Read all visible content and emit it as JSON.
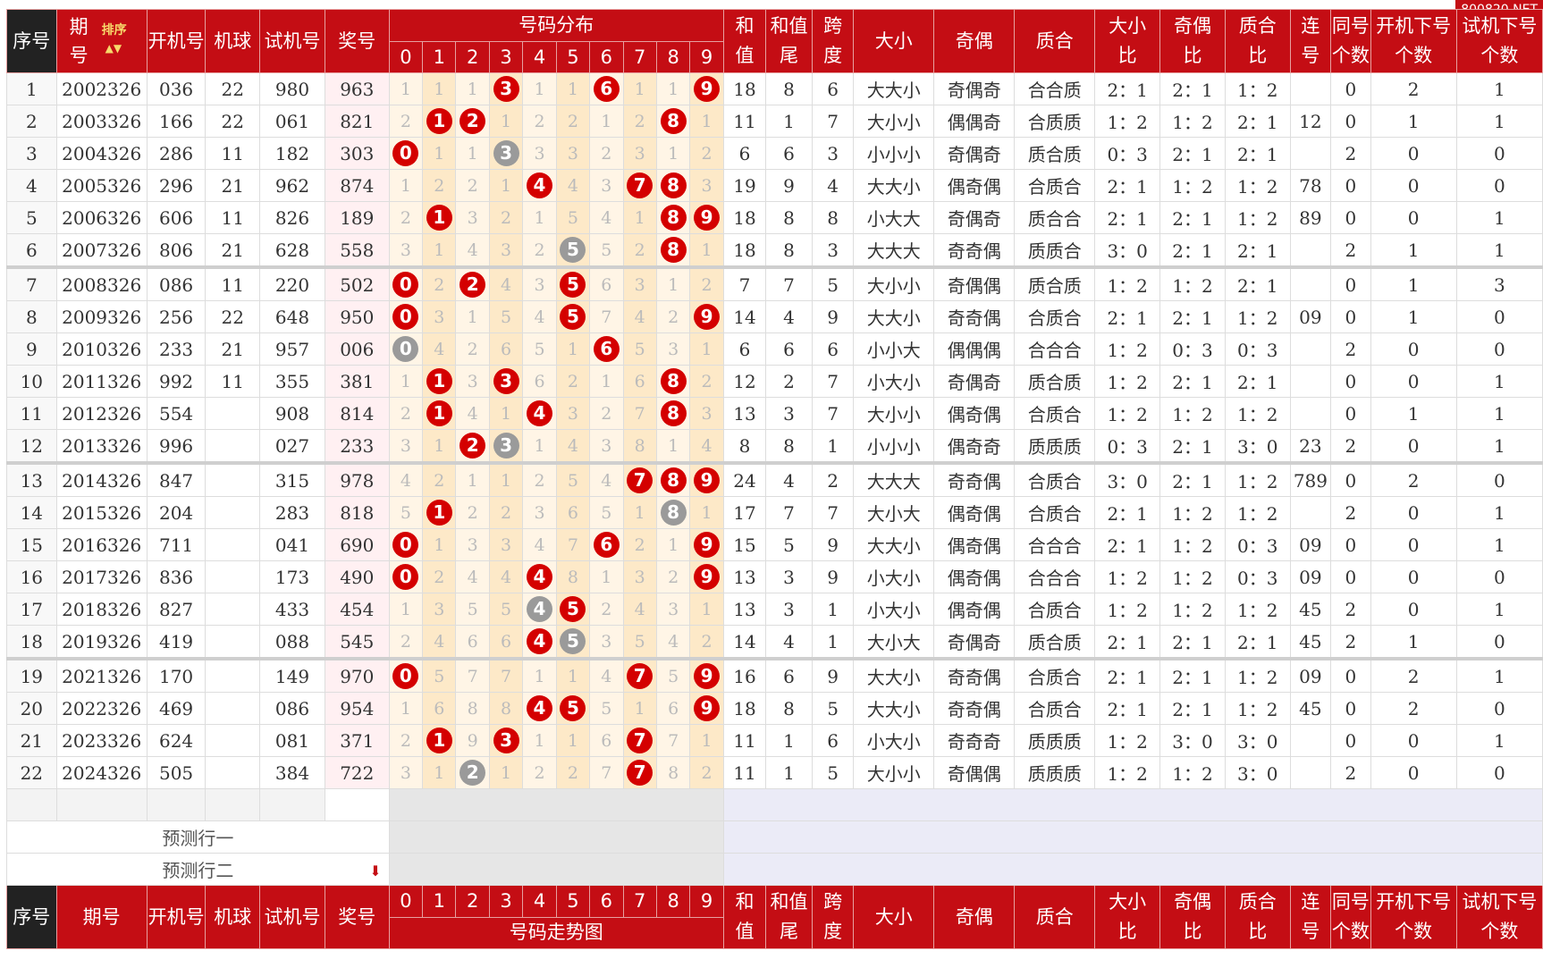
{
  "watermark": "800820.NET",
  "header": {
    "seq": "序号",
    "period_top": "期",
    "period_bottom": "号",
    "period_full": "期号",
    "sort": "排序",
    "open_no": "开机号",
    "ball": "机球",
    "trial_no": "试机号",
    "prize_no": "奖号",
    "dist_title": "号码分布",
    "trend_title": "号码走势图",
    "digits": [
      "0",
      "1",
      "2",
      "3",
      "4",
      "5",
      "6",
      "7",
      "8",
      "9"
    ],
    "sum_top": "和",
    "sum_bottom": "值",
    "sumtail_top": "和值",
    "sumtail_bottom": "尾",
    "span_top": "跨",
    "span_bottom": "度",
    "big_small": "大小",
    "odd_even": "奇偶",
    "prime": "质合",
    "bs_ratio_top": "大小",
    "bs_ratio_bottom": "比",
    "oe_ratio_top": "奇偶",
    "oe_ratio_bottom": "比",
    "pr_ratio_top": "质合",
    "pr_ratio_bottom": "比",
    "consec_top": "连",
    "consec_bottom": "号",
    "same_top": "同号",
    "same_bottom": "个数",
    "opennext_top": "开机下号",
    "opennext_bottom": "个数",
    "trialnext_top": "试机下号",
    "trialnext_bottom": "个数"
  },
  "predict": [
    "预测行一",
    "预测行二"
  ],
  "rows": [
    {
      "seq": "1",
      "period": "2002326",
      "open": "036",
      "ball": "22",
      "trial": "980",
      "prize": "963",
      "dist": [
        "1",
        "1",
        "1",
        "3",
        "1",
        "1",
        "6",
        "1",
        "1",
        "9"
      ],
      "hits": [
        3,
        6,
        9
      ],
      "gray": [],
      "sum": "18",
      "tail": "8",
      "span": "6",
      "bs": "大大小",
      "oe": "奇偶奇",
      "pr": "合合质",
      "bsr": "2：1",
      "oer": "2：1",
      "prr": "1：2",
      "consec": "",
      "same": "0",
      "opennext": "2",
      "trialnext": "1"
    },
    {
      "seq": "2",
      "period": "2003326",
      "open": "166",
      "ball": "22",
      "trial": "061",
      "prize": "821",
      "dist": [
        "2",
        "1",
        "2",
        "1",
        "2",
        "2",
        "1",
        "2",
        "8",
        "1"
      ],
      "hits": [
        1,
        2,
        8
      ],
      "gray": [],
      "sum": "11",
      "tail": "1",
      "span": "7",
      "bs": "大小小",
      "oe": "偶偶奇",
      "pr": "合质质",
      "bsr": "1：2",
      "oer": "1：2",
      "prr": "2：1",
      "consec": "12",
      "same": "0",
      "opennext": "1",
      "trialnext": "1"
    },
    {
      "seq": "3",
      "period": "2004326",
      "open": "286",
      "ball": "11",
      "trial": "182",
      "prize": "303",
      "dist": [
        "0",
        "1",
        "1",
        "3",
        "3",
        "3",
        "2",
        "3",
        "1",
        "2"
      ],
      "hits": [
        0
      ],
      "gray": [
        3
      ],
      "sum": "6",
      "tail": "6",
      "span": "3",
      "bs": "小小小",
      "oe": "奇偶奇",
      "pr": "质合质",
      "bsr": "0：3",
      "oer": "2：1",
      "prr": "2：1",
      "consec": "",
      "same": "2",
      "opennext": "0",
      "trialnext": "0"
    },
    {
      "seq": "4",
      "period": "2005326",
      "open": "296",
      "ball": "21",
      "trial": "962",
      "prize": "874",
      "dist": [
        "1",
        "2",
        "2",
        "1",
        "4",
        "4",
        "3",
        "7",
        "8",
        "3"
      ],
      "hits": [
        4,
        7,
        8
      ],
      "gray": [],
      "sum": "19",
      "tail": "9",
      "span": "4",
      "bs": "大大小",
      "oe": "偶奇偶",
      "pr": "合质合",
      "bsr": "2：1",
      "oer": "1：2",
      "prr": "1：2",
      "consec": "78",
      "same": "0",
      "opennext": "0",
      "trialnext": "0"
    },
    {
      "seq": "5",
      "period": "2006326",
      "open": "606",
      "ball": "11",
      "trial": "826",
      "prize": "189",
      "dist": [
        "2",
        "1",
        "3",
        "2",
        "1",
        "5",
        "4",
        "1",
        "8",
        "9"
      ],
      "hits": [
        1,
        8,
        9
      ],
      "gray": [],
      "sum": "18",
      "tail": "8",
      "span": "8",
      "bs": "小大大",
      "oe": "奇偶奇",
      "pr": "质合合",
      "bsr": "2：1",
      "oer": "2：1",
      "prr": "1：2",
      "consec": "89",
      "same": "0",
      "opennext": "0",
      "trialnext": "1"
    },
    {
      "seq": "6",
      "period": "2007326",
      "open": "806",
      "ball": "21",
      "trial": "628",
      "prize": "558",
      "dist": [
        "3",
        "1",
        "4",
        "3",
        "2",
        "5",
        "5",
        "2",
        "8",
        "1"
      ],
      "hits": [
        8
      ],
      "gray": [
        5
      ],
      "sum": "18",
      "tail": "8",
      "span": "3",
      "bs": "大大大",
      "oe": "奇奇偶",
      "pr": "质质合",
      "bsr": "3：0",
      "oer": "2：1",
      "prr": "2：1",
      "consec": "",
      "same": "2",
      "opennext": "1",
      "trialnext": "1"
    },
    {
      "seq": "7",
      "period": "2008326",
      "open": "086",
      "ball": "11",
      "trial": "220",
      "prize": "502",
      "dist": [
        "0",
        "2",
        "2",
        "4",
        "3",
        "5",
        "6",
        "3",
        "1",
        "2"
      ],
      "hits": [
        0,
        2,
        5
      ],
      "gray": [],
      "sum": "7",
      "tail": "7",
      "span": "5",
      "bs": "大小小",
      "oe": "奇偶偶",
      "pr": "质合质",
      "bsr": "1：2",
      "oer": "1：2",
      "prr": "2：1",
      "consec": "",
      "same": "0",
      "opennext": "1",
      "trialnext": "3"
    },
    {
      "seq": "8",
      "period": "2009326",
      "open": "256",
      "ball": "22",
      "trial": "648",
      "prize": "950",
      "dist": [
        "0",
        "3",
        "1",
        "5",
        "4",
        "5",
        "7",
        "4",
        "2",
        "9"
      ],
      "hits": [
        0,
        5,
        9
      ],
      "gray": [],
      "sum": "14",
      "tail": "4",
      "span": "9",
      "bs": "大大小",
      "oe": "奇奇偶",
      "pr": "合质合",
      "bsr": "2：1",
      "oer": "2：1",
      "prr": "1：2",
      "consec": "09",
      "same": "0",
      "opennext": "1",
      "trialnext": "0"
    },
    {
      "seq": "9",
      "period": "2010326",
      "open": "233",
      "ball": "21",
      "trial": "957",
      "prize": "006",
      "dist": [
        "0",
        "4",
        "2",
        "6",
        "5",
        "1",
        "6",
        "5",
        "3",
        "1"
      ],
      "hits": [
        6
      ],
      "gray": [
        0
      ],
      "sum": "6",
      "tail": "6",
      "span": "6",
      "bs": "小小大",
      "oe": "偶偶偶",
      "pr": "合合合",
      "bsr": "1：2",
      "oer": "0：3",
      "prr": "0：3",
      "consec": "",
      "same": "2",
      "opennext": "0",
      "trialnext": "0"
    },
    {
      "seq": "10",
      "period": "2011326",
      "open": "992",
      "ball": "11",
      "trial": "355",
      "prize": "381",
      "dist": [
        "1",
        "1",
        "3",
        "3",
        "6",
        "2",
        "1",
        "6",
        "8",
        "2"
      ],
      "hits": [
        1,
        3,
        8
      ],
      "gray": [],
      "sum": "12",
      "tail": "2",
      "span": "7",
      "bs": "小大小",
      "oe": "奇偶奇",
      "pr": "质合质",
      "bsr": "1：2",
      "oer": "2：1",
      "prr": "2：1",
      "consec": "",
      "same": "0",
      "opennext": "0",
      "trialnext": "1"
    },
    {
      "seq": "11",
      "period": "2012326",
      "open": "554",
      "ball": "",
      "trial": "908",
      "prize": "814",
      "dist": [
        "2",
        "1",
        "4",
        "1",
        "4",
        "3",
        "2",
        "7",
        "8",
        "3"
      ],
      "hits": [
        1,
        4,
        8
      ],
      "gray": [],
      "sum": "13",
      "tail": "3",
      "span": "7",
      "bs": "大小小",
      "oe": "偶奇偶",
      "pr": "合质合",
      "bsr": "1：2",
      "oer": "1：2",
      "prr": "1：2",
      "consec": "",
      "same": "0",
      "opennext": "1",
      "trialnext": "1"
    },
    {
      "seq": "12",
      "period": "2013326",
      "open": "996",
      "ball": "",
      "trial": "027",
      "prize": "233",
      "dist": [
        "3",
        "1",
        "2",
        "3",
        "1",
        "4",
        "3",
        "8",
        "1",
        "4"
      ],
      "hits": [
        2
      ],
      "gray": [
        3
      ],
      "sum": "8",
      "tail": "8",
      "span": "1",
      "bs": "小小小",
      "oe": "偶奇奇",
      "pr": "质质质",
      "bsr": "0：3",
      "oer": "2：1",
      "prr": "3：0",
      "consec": "23",
      "same": "2",
      "opennext": "0",
      "trialnext": "1"
    },
    {
      "seq": "13",
      "period": "2014326",
      "open": "847",
      "ball": "",
      "trial": "315",
      "prize": "978",
      "dist": [
        "4",
        "2",
        "1",
        "1",
        "2",
        "5",
        "4",
        "7",
        "8",
        "9"
      ],
      "hits": [
        7,
        8,
        9
      ],
      "gray": [],
      "sum": "24",
      "tail": "4",
      "span": "2",
      "bs": "大大大",
      "oe": "奇奇偶",
      "pr": "合质合",
      "bsr": "3：0",
      "oer": "2：1",
      "prr": "1：2",
      "consec": "789",
      "same": "0",
      "opennext": "2",
      "trialnext": "0"
    },
    {
      "seq": "14",
      "period": "2015326",
      "open": "204",
      "ball": "",
      "trial": "283",
      "prize": "818",
      "dist": [
        "5",
        "1",
        "2",
        "2",
        "3",
        "6",
        "5",
        "1",
        "8",
        "1"
      ],
      "hits": [
        1
      ],
      "gray": [
        8
      ],
      "sum": "17",
      "tail": "7",
      "span": "7",
      "bs": "大小大",
      "oe": "偶奇偶",
      "pr": "合质合",
      "bsr": "2：1",
      "oer": "1：2",
      "prr": "1：2",
      "consec": "",
      "same": "2",
      "opennext": "0",
      "trialnext": "1"
    },
    {
      "seq": "15",
      "period": "2016326",
      "open": "711",
      "ball": "",
      "trial": "041",
      "prize": "690",
      "dist": [
        "0",
        "1",
        "3",
        "3",
        "4",
        "7",
        "6",
        "2",
        "1",
        "9"
      ],
      "hits": [
        0,
        6,
        9
      ],
      "gray": [],
      "sum": "15",
      "tail": "5",
      "span": "9",
      "bs": "大大小",
      "oe": "偶奇偶",
      "pr": "合合合",
      "bsr": "2：1",
      "oer": "1：2",
      "prr": "0：3",
      "consec": "09",
      "same": "0",
      "opennext": "0",
      "trialnext": "1"
    },
    {
      "seq": "16",
      "period": "2017326",
      "open": "836",
      "ball": "",
      "trial": "173",
      "prize": "490",
      "dist": [
        "0",
        "2",
        "4",
        "4",
        "4",
        "8",
        "1",
        "3",
        "2",
        "9"
      ],
      "hits": [
        0,
        4,
        9
      ],
      "gray": [],
      "sum": "13",
      "tail": "3",
      "span": "9",
      "bs": "小大小",
      "oe": "偶奇偶",
      "pr": "合合合",
      "bsr": "1：2",
      "oer": "1：2",
      "prr": "0：3",
      "consec": "09",
      "same": "0",
      "opennext": "0",
      "trialnext": "0"
    },
    {
      "seq": "17",
      "period": "2018326",
      "open": "827",
      "ball": "",
      "trial": "433",
      "prize": "454",
      "dist": [
        "1",
        "3",
        "5",
        "5",
        "4",
        "5",
        "2",
        "4",
        "3",
        "1"
      ],
      "hits": [
        5
      ],
      "gray": [
        4
      ],
      "sum": "13",
      "tail": "3",
      "span": "1",
      "bs": "小大小",
      "oe": "偶奇偶",
      "pr": "合质合",
      "bsr": "1：2",
      "oer": "1：2",
      "prr": "1：2",
      "consec": "45",
      "same": "2",
      "opennext": "0",
      "trialnext": "1"
    },
    {
      "seq": "18",
      "period": "2019326",
      "open": "419",
      "ball": "",
      "trial": "088",
      "prize": "545",
      "dist": [
        "2",
        "4",
        "6",
        "6",
        "4",
        "5",
        "3",
        "5",
        "4",
        "2"
      ],
      "hits": [
        4
      ],
      "gray": [
        5
      ],
      "sum": "14",
      "tail": "4",
      "span": "1",
      "bs": "大小大",
      "oe": "奇偶奇",
      "pr": "质合质",
      "bsr": "2：1",
      "oer": "2：1",
      "prr": "2：1",
      "consec": "45",
      "same": "2",
      "opennext": "1",
      "trialnext": "0"
    },
    {
      "seq": "19",
      "period": "2021326",
      "open": "170",
      "ball": "",
      "trial": "149",
      "prize": "970",
      "dist": [
        "0",
        "5",
        "7",
        "7",
        "1",
        "1",
        "4",
        "7",
        "5",
        "9"
      ],
      "hits": [
        0,
        7,
        9
      ],
      "gray": [],
      "sum": "16",
      "tail": "6",
      "span": "9",
      "bs": "大大小",
      "oe": "奇奇偶",
      "pr": "合质合",
      "bsr": "2：1",
      "oer": "2：1",
      "prr": "1：2",
      "consec": "09",
      "same": "0",
      "opennext": "2",
      "trialnext": "1"
    },
    {
      "seq": "20",
      "period": "2022326",
      "open": "469",
      "ball": "",
      "trial": "086",
      "prize": "954",
      "dist": [
        "1",
        "6",
        "8",
        "8",
        "4",
        "5",
        "5",
        "1",
        "6",
        "9"
      ],
      "hits": [
        4,
        5,
        9
      ],
      "gray": [],
      "sum": "18",
      "tail": "8",
      "span": "5",
      "bs": "大大小",
      "oe": "奇奇偶",
      "pr": "合质合",
      "bsr": "2：1",
      "oer": "2：1",
      "prr": "1：2",
      "consec": "45",
      "same": "0",
      "opennext": "2",
      "trialnext": "0"
    },
    {
      "seq": "21",
      "period": "2023326",
      "open": "624",
      "ball": "",
      "trial": "081",
      "prize": "371",
      "dist": [
        "2",
        "1",
        "9",
        "3",
        "1",
        "1",
        "6",
        "7",
        "7",
        "1"
      ],
      "hits": [
        1,
        3,
        7
      ],
      "gray": [],
      "sum": "11",
      "tail": "1",
      "span": "6",
      "bs": "小大小",
      "oe": "奇奇奇",
      "pr": "质质质",
      "bsr": "1：2",
      "oer": "3：0",
      "prr": "3：0",
      "consec": "",
      "same": "0",
      "opennext": "0",
      "trialnext": "1"
    },
    {
      "seq": "22",
      "period": "2024326",
      "open": "505",
      "ball": "",
      "trial": "384",
      "prize": "722",
      "dist": [
        "3",
        "1",
        "2",
        "1",
        "2",
        "2",
        "7",
        "7",
        "8",
        "2"
      ],
      "hits": [
        7
      ],
      "gray": [
        2
      ],
      "sum": "11",
      "tail": "1",
      "span": "5",
      "bs": "大小小",
      "oe": "奇偶偶",
      "pr": "质质质",
      "bsr": "1：2",
      "oer": "1：2",
      "prr": "3：0",
      "consec": "",
      "same": "2",
      "opennext": "0",
      "trialnext": "0"
    }
  ]
}
